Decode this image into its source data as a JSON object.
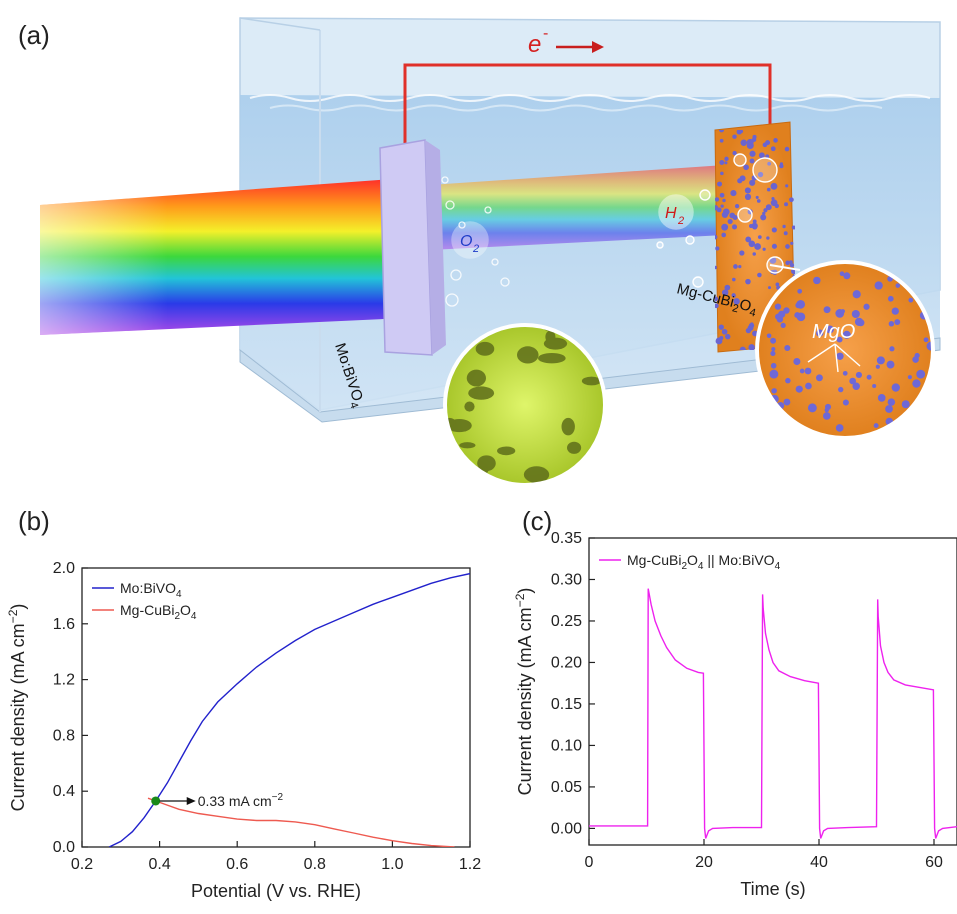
{
  "panels": {
    "a": {
      "label": "(a)"
    },
    "b": {
      "label": "(b)"
    },
    "c": {
      "label": "(c)"
    }
  },
  "illustration": {
    "electron": "e",
    "electron_sup": "-",
    "o2": "O",
    "o2_sub": "2",
    "h2": "H",
    "h2_sub": "2",
    "mgo": "MgO",
    "photoanode_label": {
      "base": "Mo:BiVO",
      "sub": "4"
    },
    "photocathode_label": {
      "p1": "Mg-CuBi",
      "s1": "2",
      "p2": "O",
      "s2": "4"
    },
    "colors": {
      "electron_wire": "#e0302a",
      "anode": "#c9c4f2",
      "cathode": "#f08a2a",
      "nano": "#c8e63a",
      "mgo": "#7870d8"
    }
  },
  "chart_data": [
    {
      "type": "line",
      "panel": "(b)",
      "xlabel": "Potential (V vs. RHE)",
      "ylabel": {
        "base": "Current density (mA cm",
        "sup": "−2",
        "end": ")"
      },
      "xlim": [
        0.2,
        1.2
      ],
      "ylim": [
        0.0,
        2.0
      ],
      "xticks": [
        "0.2",
        "0.4",
        "0.6",
        "0.8",
        "1.0",
        "1.2"
      ],
      "yticks": [
        "0.0",
        "0.4",
        "0.8",
        "1.2",
        "1.6",
        "2.0"
      ],
      "legend_position": "top-left",
      "series": [
        {
          "name": {
            "base": "Mo:BiVO",
            "sub": "4"
          },
          "color": "#2222cc",
          "x": [
            0.27,
            0.3,
            0.33,
            0.36,
            0.39,
            0.42,
            0.45,
            0.48,
            0.51,
            0.55,
            0.6,
            0.65,
            0.7,
            0.75,
            0.8,
            0.85,
            0.9,
            0.95,
            1.0,
            1.05,
            1.1,
            1.15,
            1.2
          ],
          "y": [
            0.0,
            0.04,
            0.11,
            0.21,
            0.33,
            0.46,
            0.61,
            0.76,
            0.9,
            1.04,
            1.17,
            1.29,
            1.39,
            1.48,
            1.56,
            1.62,
            1.68,
            1.74,
            1.79,
            1.84,
            1.89,
            1.93,
            1.96
          ]
        },
        {
          "name": {
            "p1": "Mg-CuBi",
            "s1": "2",
            "p2": "O",
            "s2": "4"
          },
          "color": "#ee5a50",
          "x": [
            0.37,
            0.4,
            0.45,
            0.5,
            0.55,
            0.6,
            0.65,
            0.7,
            0.75,
            0.8,
            0.85,
            0.9,
            0.95,
            1.0,
            1.05,
            1.1,
            1.16
          ],
          "y": [
            0.35,
            0.32,
            0.27,
            0.24,
            0.22,
            0.2,
            0.19,
            0.19,
            0.18,
            0.16,
            0.13,
            0.1,
            0.07,
            0.045,
            0.025,
            0.01,
            0.0
          ]
        }
      ],
      "annotation": {
        "x": 0.39,
        "y": 0.33,
        "text": "0.33 mA cm",
        "sup": "−2",
        "color": "#1a8a1a"
      }
    },
    {
      "type": "line",
      "panel": "(c)",
      "xlabel": "Time (s)",
      "ylabel": {
        "base": "Current density (mA cm",
        "sup": "−2",
        "end": ")"
      },
      "xlim": [
        0,
        64
      ],
      "ylim": [
        -0.02,
        0.35
      ],
      "xticks": [
        "0",
        "20",
        "40",
        "60"
      ],
      "xtick_values": [
        0,
        20,
        40,
        60
      ],
      "yticks": [
        "0.00",
        "0.05",
        "0.10",
        "0.15",
        "0.20",
        "0.25",
        "0.30",
        "0.35"
      ],
      "ytick_values": [
        0,
        0.05,
        0.1,
        0.15,
        0.2,
        0.25,
        0.3,
        0.35
      ],
      "legend_position": "top-left",
      "series": [
        {
          "name": {
            "p1": "Mg-CuBi",
            "s1": "2",
            "p2": "O",
            "s2": "4",
            "sep": " || ",
            "p3": "Mo:BiVO",
            "s3": "4"
          },
          "color": "#ee22ee",
          "x": [
            0,
            10.2,
            10.3,
            10.8,
            11.5,
            12.5,
            13.5,
            15,
            17,
            19,
            19.9,
            20.1,
            20.3,
            20.8,
            21.5,
            25,
            30,
            30.2,
            30.3,
            30.7,
            31.3,
            32,
            33,
            35,
            37.5,
            39.9,
            40.1,
            40.3,
            40.8,
            41.5,
            45,
            50,
            50.2,
            50.3,
            50.7,
            51.3,
            52,
            53,
            55,
            57.5,
            59.9,
            60.1,
            60.3,
            60.8,
            61.5,
            64
          ],
          "y": [
            0.003,
            0.003,
            0.289,
            0.27,
            0.25,
            0.232,
            0.218,
            0.203,
            0.193,
            0.188,
            0.187,
            0.0,
            -0.012,
            -0.003,
            0.0,
            0.001,
            0.001,
            0.282,
            0.265,
            0.235,
            0.215,
            0.2,
            0.19,
            0.183,
            0.178,
            0.175,
            0.0,
            -0.012,
            -0.003,
            0.0,
            0.001,
            0.002,
            0.276,
            0.255,
            0.22,
            0.2,
            0.188,
            0.179,
            0.173,
            0.17,
            0.167,
            0.0,
            -0.012,
            -0.003,
            0.0,
            0.002
          ]
        }
      ]
    }
  ]
}
